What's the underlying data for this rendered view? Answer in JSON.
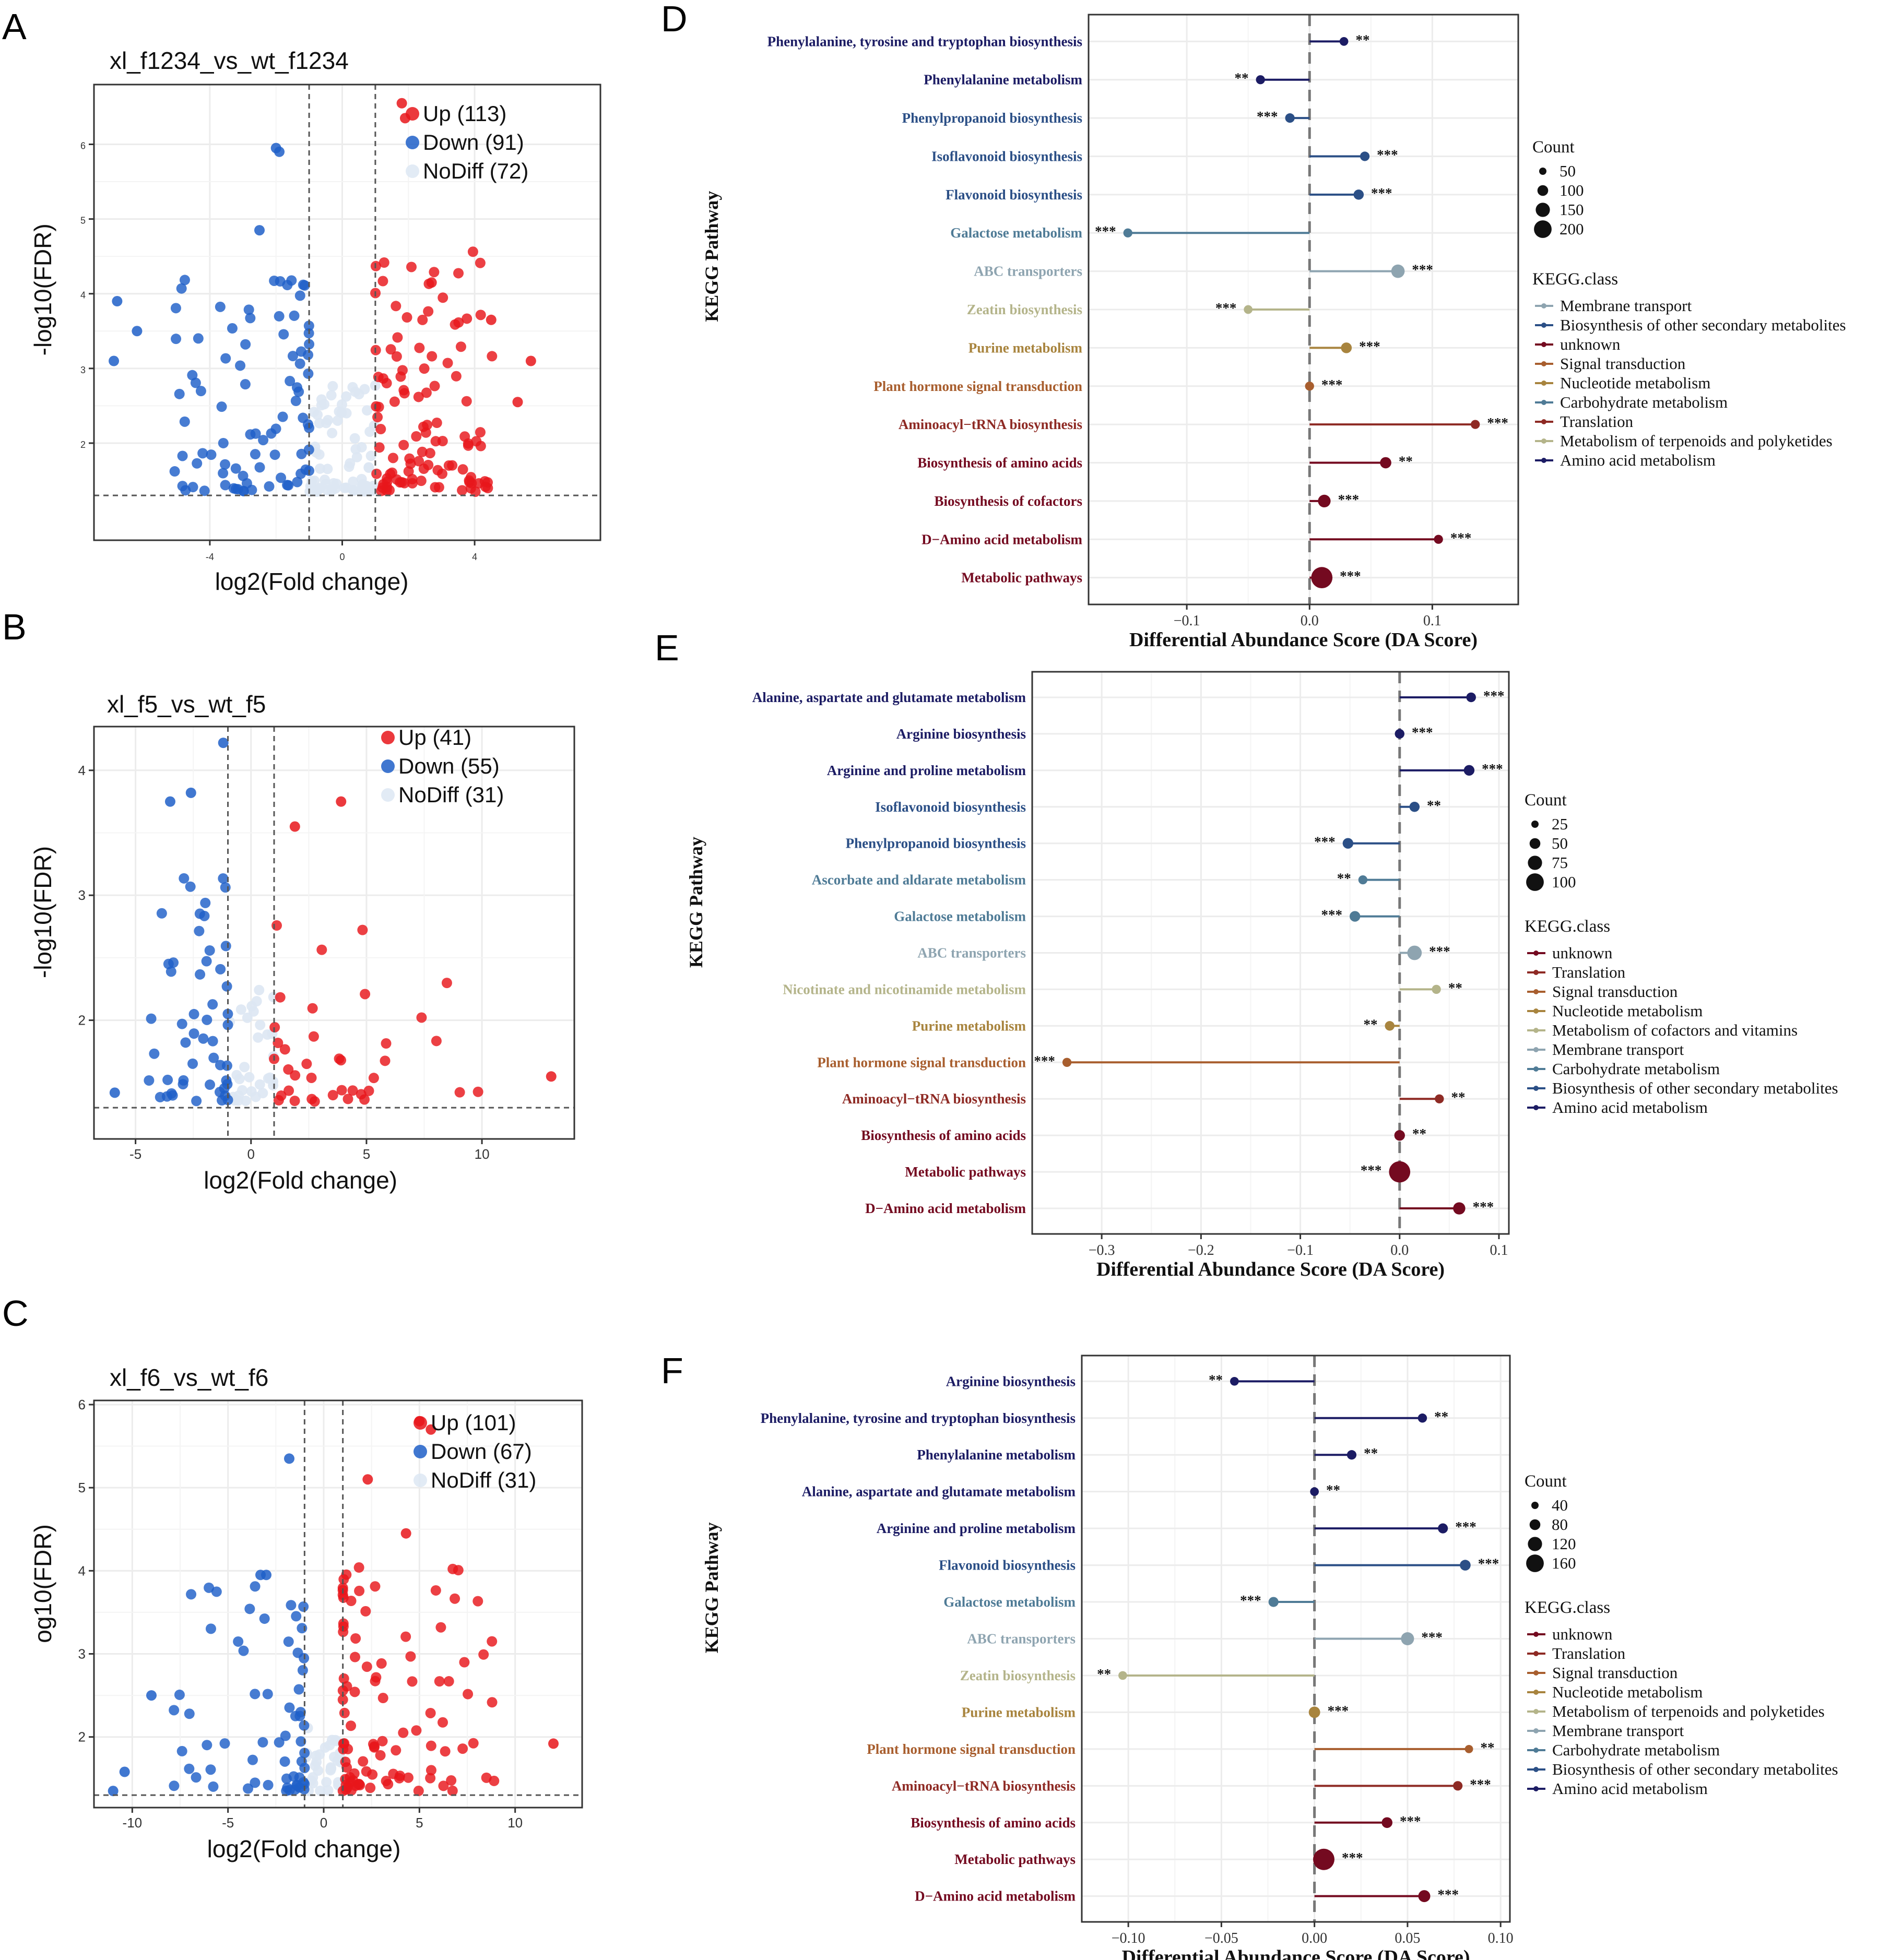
{
  "figure": {
    "panel_letters": [
      "A",
      "B",
      "C",
      "D",
      "E",
      "F"
    ]
  },
  "colors": {
    "up": "#e8161b",
    "down": "#1f5fc8",
    "nodiff": "#dde7f3",
    "grid": "#ececec",
    "classes": {
      "Amino acid metabolism": "#1c1c64",
      "Biosynthesis of other secondary metabolites": "#2b4f86",
      "Carbohydrate metabolism": "#4f7b96",
      "Membrane transport": "#8ea4b0",
      "Metabolism of terpenoids and polyketides": "#b4b48a",
      "Metabolism of cofactors and vitamins": "#b4b48a",
      "Nucleotide metabolism": "#a8843e",
      "Signal transduction": "#a85e2e",
      "Translation": "#8e2a24",
      "unknown": "#740a20"
    }
  },
  "chart_data": [
    {
      "panel": "A",
      "type": "scatter",
      "title": "xl_f1234_vs_wt_f1234",
      "xlabel": "log2(Fold change)",
      "ylabel": "-log10(FDR)",
      "xlim": [
        -7.5,
        7.8
      ],
      "ylim": [
        0.7,
        6.8
      ],
      "xticks": [
        -4,
        0,
        4
      ],
      "xtick_labels": [
        "-4",
        "0",
        "4"
      ],
      "yticks": [
        2,
        3,
        4,
        5,
        6
      ],
      "ytick_labels": [
        "2",
        "3",
        "4",
        "5",
        "6"
      ],
      "vlines": [
        -1,
        1
      ],
      "hline": 1.3,
      "legend": {
        "position": "top-right",
        "entries": [
          {
            "name": "Up",
            "count": "113"
          },
          {
            "name": "Down",
            "count": "91"
          },
          {
            "name": "NoDiff",
            "count": "72"
          }
        ]
      },
      "groups": {
        "up": {
          "count": 113,
          "x_range": [
            1.0,
            5.7
          ],
          "y_range": [
            1.35,
            6.55
          ]
        },
        "down": {
          "count": 91,
          "x_range": [
            -6.9,
            -1.0
          ],
          "y_range": [
            1.35,
            5.95
          ]
        },
        "nodiff": {
          "count": 72,
          "x_range": [
            -1.0,
            1.0
          ],
          "y_range": [
            1.35,
            3.9
          ]
        }
      },
      "notable_points": [
        {
          "x": 1.8,
          "y": 6.55,
          "group": "up"
        },
        {
          "x": 1.9,
          "y": 6.35,
          "group": "up"
        },
        {
          "x": -2.0,
          "y": 5.95,
          "group": "down"
        },
        {
          "x": -1.9,
          "y": 5.9,
          "group": "down"
        },
        {
          "x": -6.8,
          "y": 3.9,
          "group": "down"
        },
        {
          "x": -6.2,
          "y": 3.5,
          "group": "down"
        },
        {
          "x": -6.9,
          "y": 3.1,
          "group": "down"
        },
        {
          "x": 5.7,
          "y": 3.1,
          "group": "up"
        },
        {
          "x": 4.5,
          "y": 3.65,
          "group": "up"
        },
        {
          "x": 5.3,
          "y": 2.55,
          "group": "up"
        },
        {
          "x": -2.5,
          "y": 4.85,
          "group": "down"
        },
        {
          "x": 2.7,
          "y": 4.15,
          "group": "up"
        }
      ]
    },
    {
      "panel": "B",
      "type": "scatter",
      "title": "xl_f5_vs_wt_f5",
      "xlabel": "log2(Fold change)",
      "ylabel": "-log10(FDR)",
      "xlim": [
        -6.8,
        14.0
      ],
      "ylim": [
        1.05,
        4.35
      ],
      "xticks": [
        -5,
        0,
        5,
        10
      ],
      "xtick_labels": [
        "-5",
        "0",
        "5",
        "10"
      ],
      "yticks": [
        2,
        3,
        4
      ],
      "ytick_labels": [
        "2",
        "3",
        "4"
      ],
      "vlines": [
        -1,
        1
      ],
      "hline": 1.3,
      "legend": {
        "position": "top-right",
        "entries": [
          {
            "name": "Up",
            "count": "41"
          },
          {
            "name": "Down",
            "count": "55"
          },
          {
            "name": "NoDiff",
            "count": "31"
          }
        ]
      },
      "groups": {
        "up": {
          "count": 41,
          "x_range": [
            1.0,
            13.0
          ],
          "y_range": [
            1.35,
            3.75
          ]
        },
        "down": {
          "count": 55,
          "x_range": [
            -5.9,
            -1.0
          ],
          "y_range": [
            1.35,
            4.25
          ]
        },
        "nodiff": {
          "count": 31,
          "x_range": [
            -1.0,
            1.0
          ],
          "y_range": [
            1.35,
            2.8
          ]
        }
      },
      "notable_points": [
        {
          "x": -1.2,
          "y": 4.22,
          "group": "down"
        },
        {
          "x": 3.9,
          "y": 3.75,
          "group": "up"
        },
        {
          "x": 13.0,
          "y": 1.55,
          "group": "up"
        },
        {
          "x": 1.9,
          "y": 3.55,
          "group": "up"
        },
        {
          "x": -5.9,
          "y": 1.42,
          "group": "down"
        },
        {
          "x": -2.6,
          "y": 3.82,
          "group": "down"
        },
        {
          "x": -3.5,
          "y": 3.75,
          "group": "down"
        }
      ]
    },
    {
      "panel": "C",
      "type": "scatter",
      "title": "xl_f6_vs_wt_f6",
      "xlabel": "log2(Fold change)",
      "ylabel": "og10(FDR)",
      "xlim": [
        -12.0,
        13.5
      ],
      "ylim": [
        1.15,
        6.05
      ],
      "xticks": [
        -10,
        -5,
        0,
        5,
        10
      ],
      "xtick_labels": [
        "-10",
        "-5",
        "0",
        "5",
        "10"
      ],
      "yticks": [
        2,
        3,
        4,
        5,
        6
      ],
      "ytick_labels": [
        "2",
        "3",
        "4",
        "5",
        "6"
      ],
      "vlines": [
        -1,
        1
      ],
      "hline": 1.3,
      "legend": {
        "position": "top-right",
        "entries": [
          {
            "name": "Up",
            "count": "101"
          },
          {
            "name": "Down",
            "count": "67"
          },
          {
            "name": "NoDiff",
            "count": "31"
          }
        ]
      },
      "groups": {
        "up": {
          "count": 101,
          "x_range": [
            1.0,
            12.0
          ],
          "y_range": [
            1.35,
            5.8
          ]
        },
        "down": {
          "count": 67,
          "x_range": [
            -11.0,
            -1.0
          ],
          "y_range": [
            1.35,
            5.35
          ]
        },
        "nodiff": {
          "count": 31,
          "x_range": [
            -1.0,
            1.0
          ],
          "y_range": [
            1.35,
            2.6
          ]
        }
      },
      "notable_points": [
        {
          "x": 5.0,
          "y": 5.8,
          "group": "up"
        },
        {
          "x": 5.6,
          "y": 5.7,
          "group": "up"
        },
        {
          "x": -1.8,
          "y": 5.35,
          "group": "down"
        },
        {
          "x": 2.3,
          "y": 5.1,
          "group": "up"
        },
        {
          "x": 4.3,
          "y": 4.45,
          "group": "up"
        },
        {
          "x": 12.0,
          "y": 1.92,
          "group": "up"
        },
        {
          "x": -11.0,
          "y": 1.35,
          "group": "down"
        },
        {
          "x": -10.4,
          "y": 1.58,
          "group": "down"
        },
        {
          "x": -9.0,
          "y": 2.5,
          "group": "down"
        },
        {
          "x": -3.3,
          "y": 3.95,
          "group": "down"
        },
        {
          "x": -3.0,
          "y": 3.95,
          "group": "down"
        }
      ]
    },
    {
      "panel": "D",
      "type": "lollipop",
      "xlabel": "Differential Abundance Score (DA Score)",
      "ylabel": "KEGG Pathway",
      "xlim": [
        -0.18,
        0.17
      ],
      "xticks": [
        -0.1,
        0.0,
        0.1
      ],
      "xtick_labels": [
        "−0.1",
        "0.0",
        "0.1"
      ],
      "count_legend": {
        "title": "Count",
        "values": [
          50,
          100,
          150,
          200
        ]
      },
      "class_legend": {
        "title": "KEGG.class",
        "entries": [
          "Membrane transport",
          "Biosynthesis of other secondary metabolites",
          "unknown",
          "Signal transduction",
          "Nucleotide metabolism",
          "Carbohydrate metabolism",
          "Translation",
          "Metabolism of terpenoids and polyketides",
          "Amino acid metabolism"
        ]
      },
      "rows": [
        {
          "label": "Phenylalanine, tyrosine and tryptophan biosynthesis",
          "value": 0.028,
          "count": 10,
          "sig": "**",
          "class": "Amino acid metabolism"
        },
        {
          "label": "Phenylalanine metabolism",
          "value": -0.04,
          "count": 12,
          "sig": "**",
          "class": "Amino acid metabolism"
        },
        {
          "label": "Phenylpropanoid biosynthesis",
          "value": -0.016,
          "count": 15,
          "sig": "***",
          "class": "Biosynthesis of other secondary metabolites"
        },
        {
          "label": "Isoflavonoid biosynthesis",
          "value": 0.045,
          "count": 15,
          "sig": "***",
          "class": "Biosynthesis of other secondary metabolites"
        },
        {
          "label": "Flavonoid biosynthesis",
          "value": 0.04,
          "count": 20,
          "sig": "***",
          "class": "Biosynthesis of other secondary metabolites"
        },
        {
          "label": "Galactose metabolism",
          "value": -0.148,
          "count": 12,
          "sig": "***",
          "class": "Carbohydrate metabolism"
        },
        {
          "label": "ABC transporters",
          "value": 0.072,
          "count": 55,
          "sig": "***",
          "class": "Membrane transport"
        },
        {
          "label": "Zeatin biosynthesis",
          "value": -0.05,
          "count": 10,
          "sig": "***",
          "class": "Metabolism of terpenoids and polyketides"
        },
        {
          "label": "Purine metabolism",
          "value": 0.03,
          "count": 25,
          "sig": "***",
          "class": "Nucleotide metabolism"
        },
        {
          "label": "Plant hormone signal transduction",
          "value": 0.0,
          "count": 12,
          "sig": "***",
          "class": "Signal transduction"
        },
        {
          "label": "Aminoacyl−tRNA biosynthesis",
          "value": 0.135,
          "count": 12,
          "sig": "***",
          "class": "Translation"
        },
        {
          "label": "Biosynthesis of amino acids",
          "value": 0.062,
          "count": 30,
          "sig": "**",
          "class": "unknown"
        },
        {
          "label": "Biosynthesis of cofactors",
          "value": 0.012,
          "count": 45,
          "sig": "***",
          "class": "unknown"
        },
        {
          "label": "D−Amino acid metabolism",
          "value": 0.105,
          "count": 12,
          "sig": "***",
          "class": "unknown"
        },
        {
          "label": "Metabolic pathways",
          "value": 0.01,
          "count": 210,
          "sig": "***",
          "class": "unknown"
        }
      ]
    },
    {
      "panel": "E",
      "type": "lollipop",
      "xlabel": "Differential Abundance Score (DA Score)",
      "ylabel": "KEGG Pathway",
      "xlim": [
        -0.37,
        0.11
      ],
      "xticks": [
        -0.3,
        -0.2,
        -0.1,
        0.0,
        0.1
      ],
      "xtick_labels": [
        "−0.3",
        "−0.2",
        "−0.1",
        "0.0",
        "0.1"
      ],
      "count_legend": {
        "title": "Count",
        "values": [
          25,
          50,
          75,
          100
        ]
      },
      "class_legend": {
        "title": "KEGG.class",
        "entries": [
          "unknown",
          "Translation",
          "Signal transduction",
          "Nucleotide metabolism",
          "Metabolism of cofactors and vitamins",
          "Membrane transport",
          "Carbohydrate metabolism",
          "Biosynthesis of other secondary metabolites",
          "Amino acid metabolism"
        ]
      },
      "rows": [
        {
          "label": "Alanine, aspartate and glutamate metabolism",
          "value": 0.072,
          "count": 8,
          "sig": "***",
          "class": "Amino acid metabolism"
        },
        {
          "label": "Arginine biosynthesis",
          "value": 0.0,
          "count": 8,
          "sig": "***",
          "class": "Amino acid metabolism"
        },
        {
          "label": "Arginine and proline metabolism",
          "value": 0.07,
          "count": 12,
          "sig": "***",
          "class": "Amino acid metabolism"
        },
        {
          "label": "Isoflavonoid biosynthesis",
          "value": 0.015,
          "count": 10,
          "sig": "**",
          "class": "Biosynthesis of other secondary metabolites"
        },
        {
          "label": "Phenylpropanoid biosynthesis",
          "value": -0.052,
          "count": 12,
          "sig": "***",
          "class": "Biosynthesis of other secondary metabolites"
        },
        {
          "label": "Ascorbate and aldarate metabolism",
          "value": -0.037,
          "count": 6,
          "sig": "**",
          "class": "Carbohydrate metabolism"
        },
        {
          "label": "Galactose metabolism",
          "value": -0.045,
          "count": 12,
          "sig": "***",
          "class": "Carbohydrate metabolism"
        },
        {
          "label": "ABC transporters",
          "value": 0.015,
          "count": 35,
          "sig": "***",
          "class": "Membrane transport"
        },
        {
          "label": "Nicotinate and nicotinamide metabolism",
          "value": 0.037,
          "count": 6,
          "sig": "**",
          "class": "Metabolism of cofactors and vitamins"
        },
        {
          "label": "Purine metabolism",
          "value": -0.01,
          "count": 8,
          "sig": "**",
          "class": "Nucleotide metabolism"
        },
        {
          "label": "Plant hormone signal transduction",
          "value": -0.335,
          "count": 6,
          "sig": "***",
          "class": "Signal transduction"
        },
        {
          "label": "Aminoacyl−tRNA biosynthesis",
          "value": 0.04,
          "count": 6,
          "sig": "**",
          "class": "Translation"
        },
        {
          "label": "Biosynthesis of amino acids",
          "value": 0.0,
          "count": 12,
          "sig": "**",
          "class": "unknown"
        },
        {
          "label": "Metabolic pathways",
          "value": 0.0,
          "count": 105,
          "sig": "***",
          "class": "unknown"
        },
        {
          "label": "D−Amino acid metabolism",
          "value": 0.06,
          "count": 20,
          "sig": "***",
          "class": "unknown"
        }
      ]
    },
    {
      "panel": "F",
      "type": "lollipop",
      "xlabel": "Differential Abundance Score (DA Score)",
      "ylabel": "KEGG Pathway",
      "xlim": [
        -0.125,
        0.105
      ],
      "xticks": [
        -0.1,
        -0.05,
        0.0,
        0.05,
        0.1
      ],
      "xtick_labels": [
        "−0.10",
        "−0.05",
        "0.00",
        "0.05",
        "0.10"
      ],
      "count_legend": {
        "title": "Count",
        "values": [
          40,
          80,
          120,
          160
        ]
      },
      "class_legend": {
        "title": "KEGG.class",
        "entries": [
          "unknown",
          "Translation",
          "Signal transduction",
          "Nucleotide metabolism",
          "Metabolism of terpenoids and polyketides",
          "Membrane transport",
          "Carbohydrate metabolism",
          "Biosynthesis of other secondary metabolites",
          "Amino acid metabolism"
        ]
      },
      "rows": [
        {
          "label": "Arginine biosynthesis",
          "value": -0.043,
          "count": 8,
          "sig": "**",
          "class": "Amino acid metabolism"
        },
        {
          "label": "Phenylalanine, tyrosine and tryptophan biosynthesis",
          "value": 0.058,
          "count": 10,
          "sig": "**",
          "class": "Amino acid metabolism"
        },
        {
          "label": "Phenylalanine metabolism",
          "value": 0.02,
          "count": 12,
          "sig": "**",
          "class": "Amino acid metabolism"
        },
        {
          "label": "Alanine, aspartate and glutamate metabolism",
          "value": 0.0,
          "count": 8,
          "sig": "**",
          "class": "Amino acid metabolism"
        },
        {
          "label": "Arginine and proline metabolism",
          "value": 0.069,
          "count": 15,
          "sig": "***",
          "class": "Amino acid metabolism"
        },
        {
          "label": "Flavonoid biosynthesis",
          "value": 0.081,
          "count": 20,
          "sig": "***",
          "class": "Biosynthesis of other secondary metabolites"
        },
        {
          "label": "Galactose metabolism",
          "value": -0.022,
          "count": 15,
          "sig": "***",
          "class": "Carbohydrate metabolism"
        },
        {
          "label": "ABC transporters",
          "value": 0.05,
          "count": 40,
          "sig": "***",
          "class": "Membrane transport"
        },
        {
          "label": "Zeatin biosynthesis",
          "value": -0.103,
          "count": 8,
          "sig": "**",
          "class": "Metabolism of terpenoids and polyketides"
        },
        {
          "label": "Purine metabolism",
          "value": 0.0,
          "count": 25,
          "sig": "***",
          "class": "Nucleotide metabolism"
        },
        {
          "label": "Plant hormone signal transduction",
          "value": 0.083,
          "count": 6,
          "sig": "**",
          "class": "Signal transduction"
        },
        {
          "label": "Aminoacyl−tRNA biosynthesis",
          "value": 0.077,
          "count": 12,
          "sig": "***",
          "class": "Translation"
        },
        {
          "label": "Biosynthesis of amino acids",
          "value": 0.039,
          "count": 20,
          "sig": "***",
          "class": "unknown"
        },
        {
          "label": "Metabolic pathways",
          "value": 0.005,
          "count": 170,
          "sig": "***",
          "class": "unknown"
        },
        {
          "label": "D−Amino acid metabolism",
          "value": 0.059,
          "count": 30,
          "sig": "***",
          "class": "unknown"
        }
      ]
    }
  ]
}
